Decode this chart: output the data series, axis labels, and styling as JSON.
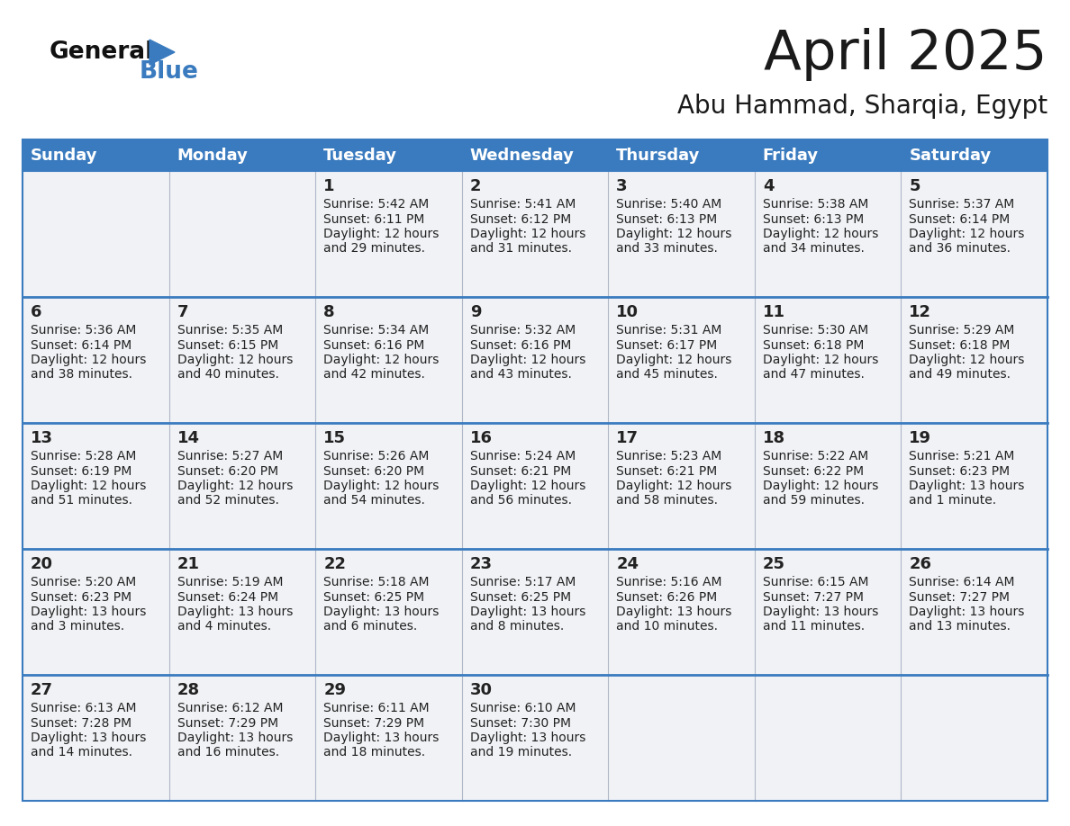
{
  "title": "April 2025",
  "subtitle": "Abu Hammad, Sharqia, Egypt",
  "days_of_week": [
    "Sunday",
    "Monday",
    "Tuesday",
    "Wednesday",
    "Thursday",
    "Friday",
    "Saturday"
  ],
  "header_bg": "#3a7bbf",
  "header_text": "#ffffff",
  "cell_bg": "#f0f2f5",
  "empty_cell_bg": "#e8eaed",
  "row_line_color": "#3a7bbf",
  "text_color": "#222222",
  "title_color": "#1a1a1a",
  "subtitle_color": "#1a1a1a",
  "general_black": "#1a1a1a",
  "general_blue": "#3a7bbf",
  "logo_text_general": "General",
  "logo_text_blue": "Blue",
  "calendar_data": [
    [
      {
        "day": "",
        "sunrise": "",
        "sunset": "",
        "daylight": ""
      },
      {
        "day": "",
        "sunrise": "",
        "sunset": "",
        "daylight": ""
      },
      {
        "day": "1",
        "sunrise": "5:42 AM",
        "sunset": "6:11 PM",
        "daylight": "12 hours and 29 minutes."
      },
      {
        "day": "2",
        "sunrise": "5:41 AM",
        "sunset": "6:12 PM",
        "daylight": "12 hours and 31 minutes."
      },
      {
        "day": "3",
        "sunrise": "5:40 AM",
        "sunset": "6:13 PM",
        "daylight": "12 hours and 33 minutes."
      },
      {
        "day": "4",
        "sunrise": "5:38 AM",
        "sunset": "6:13 PM",
        "daylight": "12 hours and 34 minutes."
      },
      {
        "day": "5",
        "sunrise": "5:37 AM",
        "sunset": "6:14 PM",
        "daylight": "12 hours and 36 minutes."
      }
    ],
    [
      {
        "day": "6",
        "sunrise": "5:36 AM",
        "sunset": "6:14 PM",
        "daylight": "12 hours and 38 minutes."
      },
      {
        "day": "7",
        "sunrise": "5:35 AM",
        "sunset": "6:15 PM",
        "daylight": "12 hours and 40 minutes."
      },
      {
        "day": "8",
        "sunrise": "5:34 AM",
        "sunset": "6:16 PM",
        "daylight": "12 hours and 42 minutes."
      },
      {
        "day": "9",
        "sunrise": "5:32 AM",
        "sunset": "6:16 PM",
        "daylight": "12 hours and 43 minutes."
      },
      {
        "day": "10",
        "sunrise": "5:31 AM",
        "sunset": "6:17 PM",
        "daylight": "12 hours and 45 minutes."
      },
      {
        "day": "11",
        "sunrise": "5:30 AM",
        "sunset": "6:18 PM",
        "daylight": "12 hours and 47 minutes."
      },
      {
        "day": "12",
        "sunrise": "5:29 AM",
        "sunset": "6:18 PM",
        "daylight": "12 hours and 49 minutes."
      }
    ],
    [
      {
        "day": "13",
        "sunrise": "5:28 AM",
        "sunset": "6:19 PM",
        "daylight": "12 hours and 51 minutes."
      },
      {
        "day": "14",
        "sunrise": "5:27 AM",
        "sunset": "6:20 PM",
        "daylight": "12 hours and 52 minutes."
      },
      {
        "day": "15",
        "sunrise": "5:26 AM",
        "sunset": "6:20 PM",
        "daylight": "12 hours and 54 minutes."
      },
      {
        "day": "16",
        "sunrise": "5:24 AM",
        "sunset": "6:21 PM",
        "daylight": "12 hours and 56 minutes."
      },
      {
        "day": "17",
        "sunrise": "5:23 AM",
        "sunset": "6:21 PM",
        "daylight": "12 hours and 58 minutes."
      },
      {
        "day": "18",
        "sunrise": "5:22 AM",
        "sunset": "6:22 PM",
        "daylight": "12 hours and 59 minutes."
      },
      {
        "day": "19",
        "sunrise": "5:21 AM",
        "sunset": "6:23 PM",
        "daylight": "13 hours and 1 minute."
      }
    ],
    [
      {
        "day": "20",
        "sunrise": "5:20 AM",
        "sunset": "6:23 PM",
        "daylight": "13 hours and 3 minutes."
      },
      {
        "day": "21",
        "sunrise": "5:19 AM",
        "sunset": "6:24 PM",
        "daylight": "13 hours and 4 minutes."
      },
      {
        "day": "22",
        "sunrise": "5:18 AM",
        "sunset": "6:25 PM",
        "daylight": "13 hours and 6 minutes."
      },
      {
        "day": "23",
        "sunrise": "5:17 AM",
        "sunset": "6:25 PM",
        "daylight": "13 hours and 8 minutes."
      },
      {
        "day": "24",
        "sunrise": "5:16 AM",
        "sunset": "6:26 PM",
        "daylight": "13 hours and 10 minutes."
      },
      {
        "day": "25",
        "sunrise": "6:15 AM",
        "sunset": "7:27 PM",
        "daylight": "13 hours and 11 minutes."
      },
      {
        "day": "26",
        "sunrise": "6:14 AM",
        "sunset": "7:27 PM",
        "daylight": "13 hours and 13 minutes."
      }
    ],
    [
      {
        "day": "27",
        "sunrise": "6:13 AM",
        "sunset": "7:28 PM",
        "daylight": "13 hours and 14 minutes."
      },
      {
        "day": "28",
        "sunrise": "6:12 AM",
        "sunset": "7:29 PM",
        "daylight": "13 hours and 16 minutes."
      },
      {
        "day": "29",
        "sunrise": "6:11 AM",
        "sunset": "7:29 PM",
        "daylight": "13 hours and 18 minutes."
      },
      {
        "day": "30",
        "sunrise": "6:10 AM",
        "sunset": "7:30 PM",
        "daylight": "13 hours and 19 minutes."
      },
      {
        "day": "",
        "sunrise": "",
        "sunset": "",
        "daylight": ""
      },
      {
        "day": "",
        "sunrise": "",
        "sunset": "",
        "daylight": ""
      },
      {
        "day": "",
        "sunrise": "",
        "sunset": "",
        "daylight": ""
      }
    ]
  ]
}
